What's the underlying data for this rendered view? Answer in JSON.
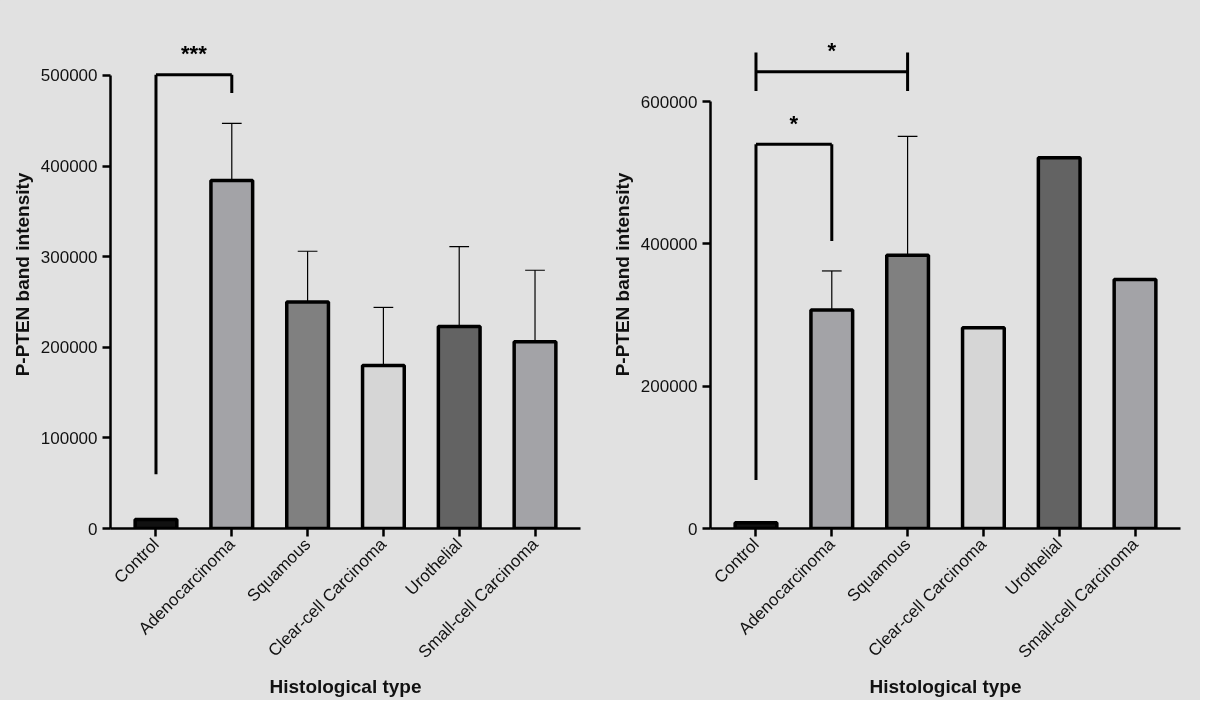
{
  "chart_data": [
    {
      "type": "bar",
      "xlabel": "Histological type",
      "ylabel": "P-PTEN band intensity",
      "categories": [
        "Control",
        "Adenocarcinoma",
        "Squamous",
        "Clear-cell Carcinoma",
        "Urothelial",
        "Small-cell Carcinoma"
      ],
      "values": [
        10000,
        384000,
        250000,
        180000,
        223000,
        206000
      ],
      "errors": [
        null,
        [
          384000,
          447000
        ],
        [
          250000,
          306000
        ],
        [
          180000,
          244000
        ],
        [
          223000,
          311000
        ],
        [
          206000,
          285000
        ]
      ],
      "colors": [
        "#111111",
        "#a3a3a7",
        "#808080",
        "#d6d6d6",
        "#636363",
        "#a3a3a7"
      ],
      "ylim": [
        0,
        500000
      ],
      "yticks": [
        0,
        100000,
        200000,
        300000,
        400000,
        500000
      ],
      "annotations": [
        "***"
      ]
    },
    {
      "type": "bar",
      "xlabel": "Histological type",
      "ylabel": "P-PTEN band intensity",
      "categories": [
        "Control",
        "Adenocarcinoma",
        "Squamous",
        "Clear-cell Carcinoma",
        "Urothelial",
        "Small-cell Carcinoma"
      ],
      "values": [
        8000,
        307000,
        384000,
        282000,
        521000,
        350000
      ],
      "errors": [
        null,
        [
          307000,
          362000
        ],
        [
          384000,
          551000
        ],
        null,
        null,
        null
      ],
      "colors": [
        "#111111",
        "#a3a3a7",
        "#808080",
        "#d6d6d6",
        "#636363",
        "#a3a3a7"
      ],
      "ylim": [
        0,
        600000
      ],
      "yticks": [
        0,
        200000,
        400000,
        600000
      ],
      "annotations": [
        "*",
        "*"
      ]
    }
  ]
}
